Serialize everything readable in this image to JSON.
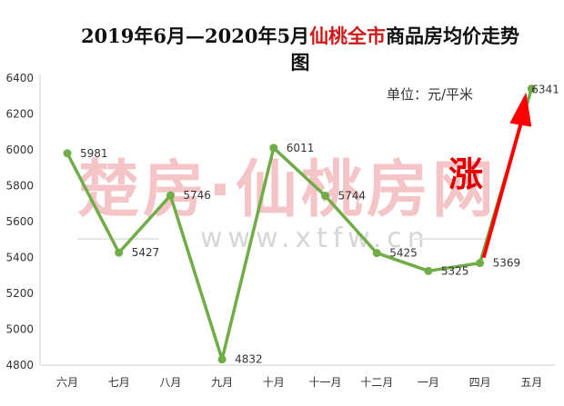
{
  "chart_data": {
    "type": "line",
    "title_part1": "2019年6月—2020年5月",
    "title_highlight": "仙桃全市",
    "title_part2": "商品房均价走势",
    "title_part3": "图",
    "unit_label": "单位：元/平米",
    "annotation": "涨",
    "watermark_cn": "楚房·仙桃房网",
    "watermark_en": "www.xtfw.cn",
    "categories": [
      "六月",
      "七月",
      "八月",
      "九月",
      "十月",
      "十一月",
      "十二月",
      "一月",
      "四月",
      "五月"
    ],
    "series": [
      {
        "values": [
          5981,
          5427,
          5746,
          4832,
          6011,
          5744,
          5425,
          5325,
          5369,
          6341
        ]
      }
    ],
    "ylim": [
      4800,
      6400
    ],
    "yticks": [
      4800,
      5000,
      5200,
      5400,
      5600,
      5800,
      6000,
      6200,
      6400
    ],
    "grid": false,
    "colors": {
      "line": "#70ad47",
      "marker": "#70ad47",
      "arrow": "#ff0000",
      "title_highlight": "#d01818",
      "watermark": "#f4c4c7",
      "watermark_en": "#d6d6d6"
    }
  }
}
